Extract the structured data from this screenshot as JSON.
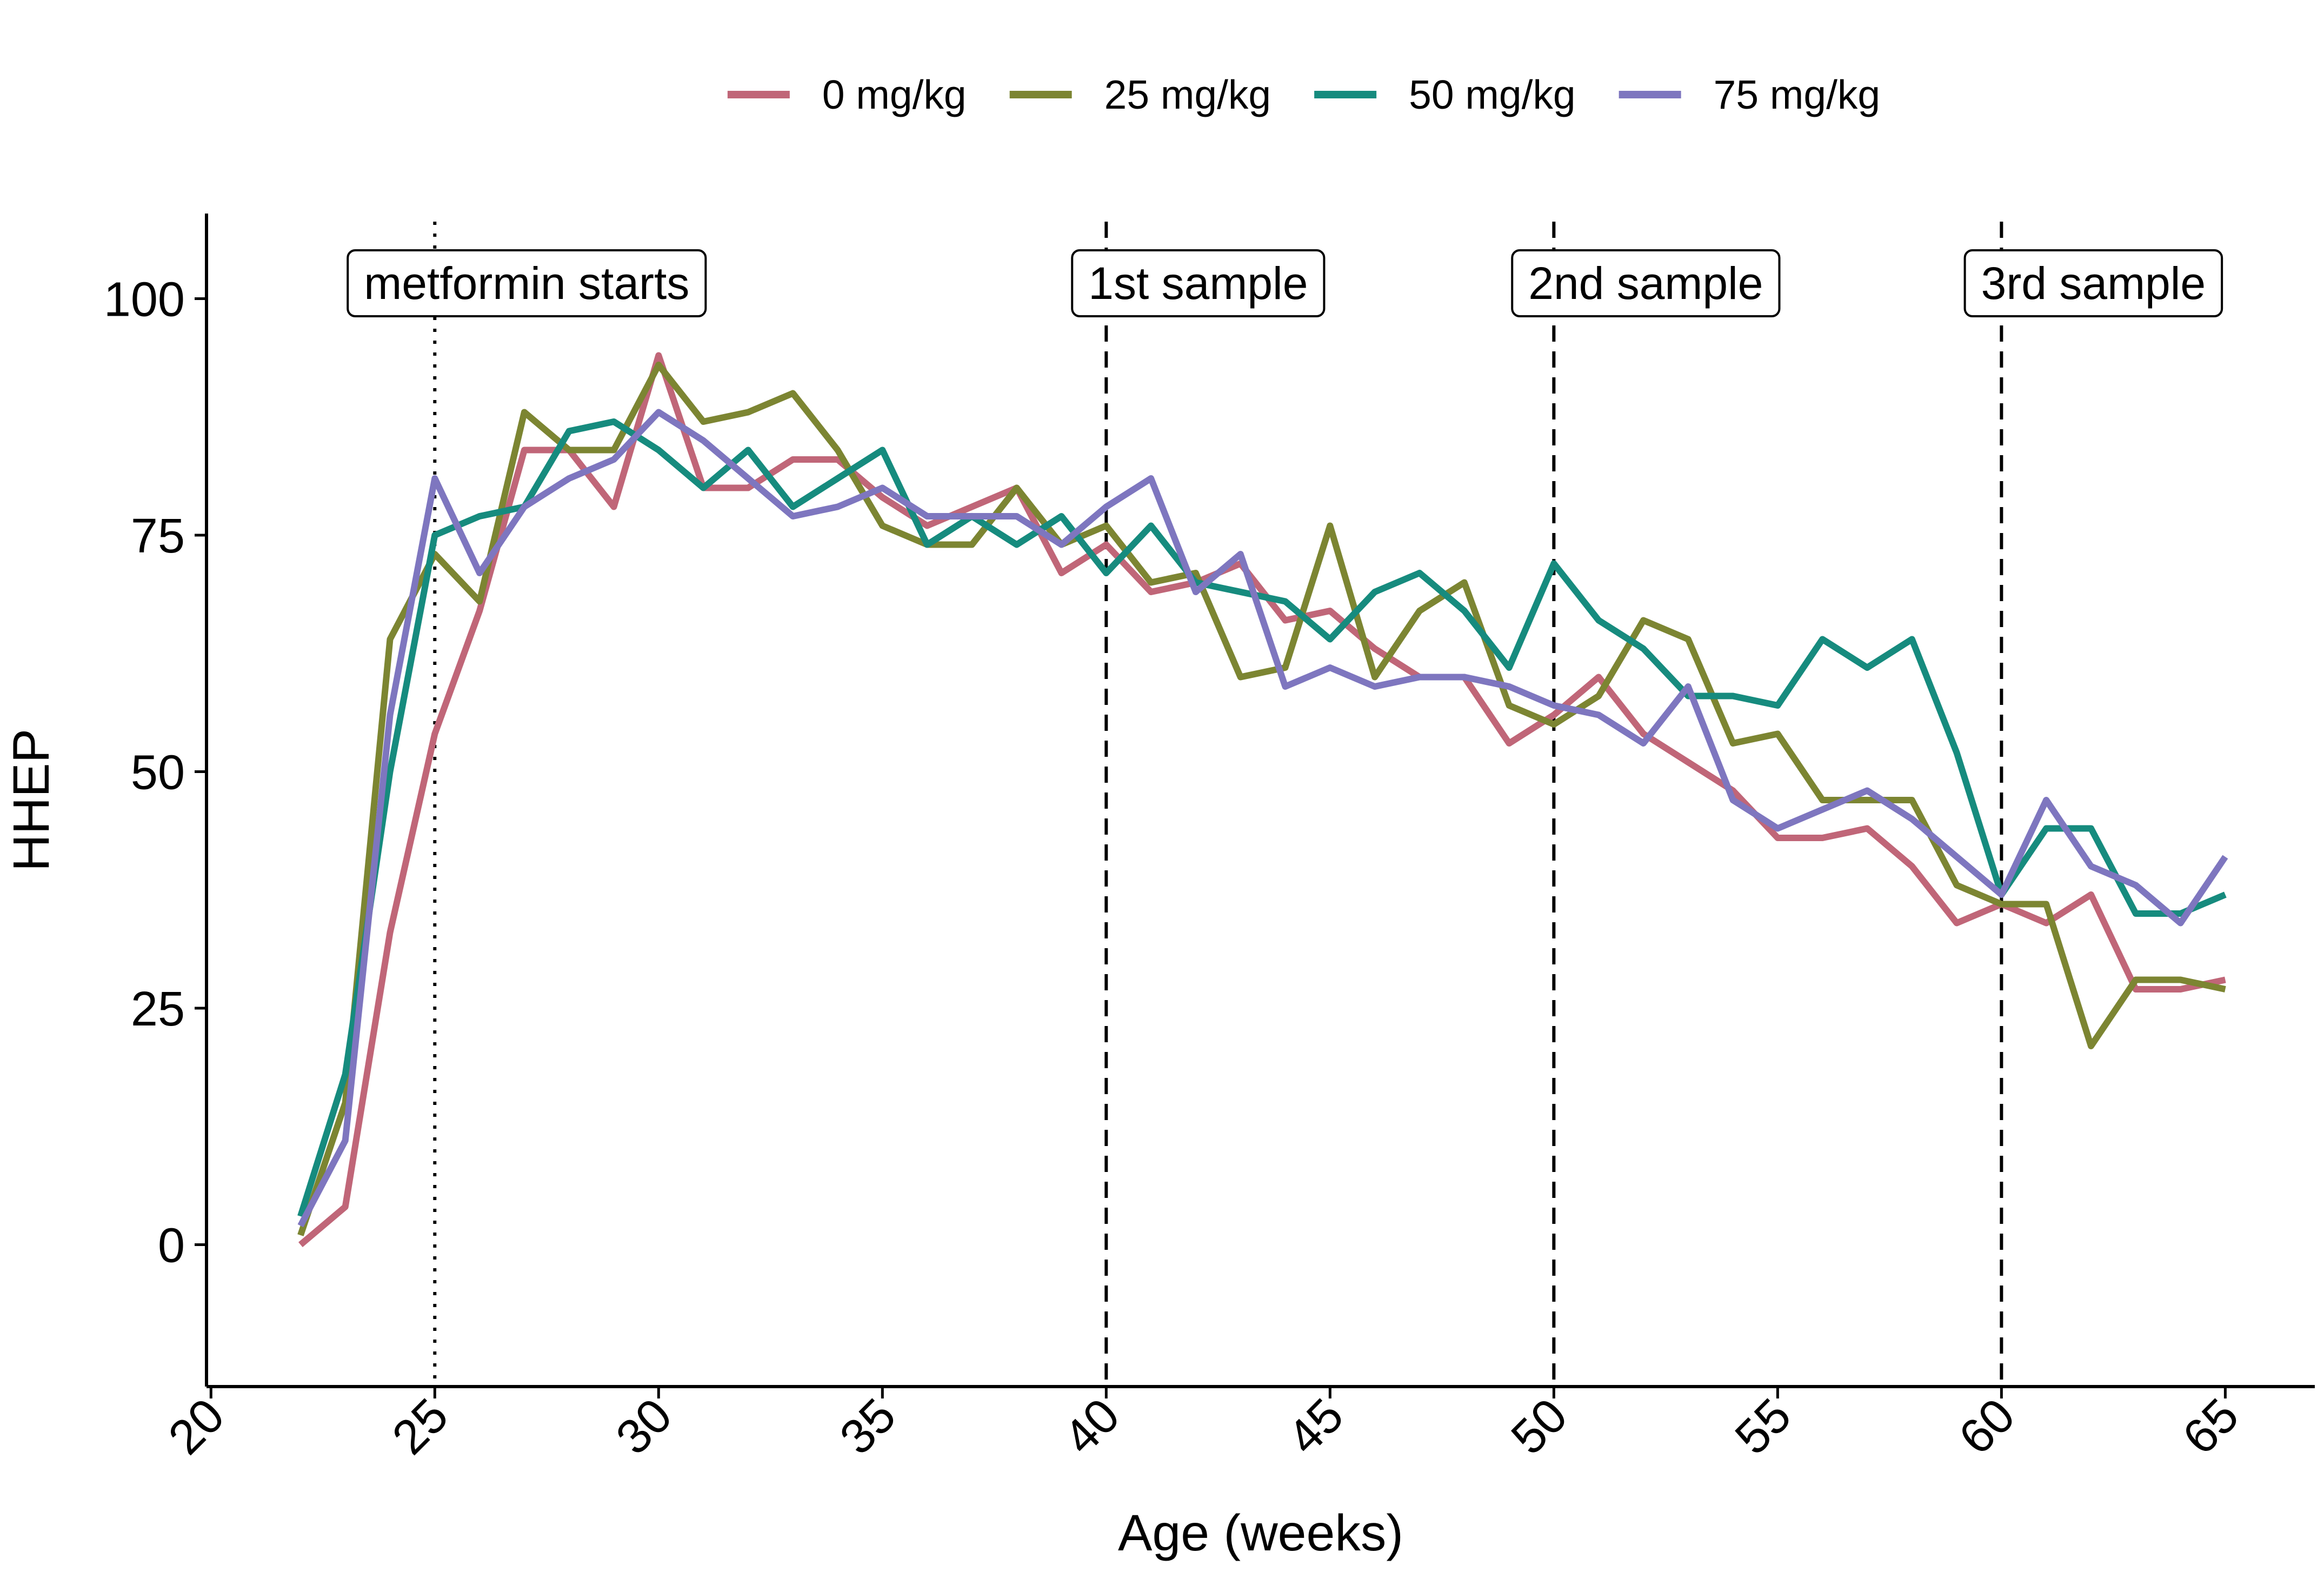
{
  "chart_data": {
    "type": "line",
    "title": "",
    "xlabel": "Age (weeks)",
    "ylabel": "HHEP",
    "xlim": [
      19.9,
      67.0
    ],
    "ylim": [
      -15,
      109
    ],
    "x_ticks": [
      20,
      25,
      30,
      35,
      40,
      45,
      50,
      55,
      60,
      65
    ],
    "y_ticks": [
      0,
      25,
      50,
      75,
      100
    ],
    "grid": false,
    "legend_position": "top",
    "x": [
      22,
      23,
      24,
      25,
      26,
      27,
      28,
      29,
      30,
      31,
      32,
      33,
      34,
      35,
      36,
      37,
      38,
      39,
      40,
      41,
      42,
      43,
      44,
      45,
      46,
      47,
      48,
      49,
      50,
      51,
      52,
      53,
      54,
      55,
      56,
      57,
      58,
      59,
      60,
      61,
      62,
      63,
      64,
      65
    ],
    "series": [
      {
        "name": "0 mg/kg",
        "color": "#C06678",
        "values": [
          0,
          4,
          33,
          54,
          67,
          84,
          84,
          78,
          94,
          80,
          80,
          83,
          83,
          79,
          76,
          78,
          80,
          71,
          74,
          69,
          70,
          72,
          66,
          67,
          63,
          60,
          60,
          53,
          56,
          60,
          54,
          51,
          48,
          43,
          43,
          44,
          40,
          34,
          36,
          34,
          37,
          27,
          27,
          28
        ]
      },
      {
        "name": "25 mg/kg",
        "color": "#7C8532",
        "values": [
          1,
          15,
          64,
          73,
          68,
          88,
          84,
          84,
          93,
          87,
          88,
          90,
          84,
          76,
          74,
          74,
          80,
          74,
          76,
          70,
          71,
          60,
          61,
          76,
          60,
          67,
          70,
          57,
          55,
          58,
          66,
          64,
          53,
          54,
          47,
          47,
          47,
          38,
          36,
          36,
          21,
          28,
          28,
          27
        ]
      },
      {
        "name": "50 mg/kg",
        "color": "#168B7E",
        "values": [
          3,
          18,
          50,
          75,
          77,
          78,
          86,
          87,
          84,
          80,
          84,
          78,
          81,
          84,
          74,
          77,
          74,
          77,
          71,
          76,
          70,
          69,
          68,
          64,
          69,
          71,
          67,
          61,
          72,
          66,
          63,
          58,
          58,
          57,
          64,
          61,
          64,
          52,
          37,
          44,
          44,
          35,
          35,
          37
        ]
      },
      {
        "name": "75 mg/kg",
        "color": "#7E76BF",
        "values": [
          2,
          11,
          56,
          81,
          71,
          78,
          81,
          83,
          88,
          85,
          81,
          77,
          78,
          80,
          77,
          77,
          77,
          74,
          78,
          81,
          69,
          73,
          59,
          61,
          59,
          60,
          60,
          59,
          57,
          56,
          53,
          59,
          47,
          44,
          46,
          48,
          45,
          41,
          37,
          47,
          40,
          38,
          34,
          41
        ]
      }
    ],
    "annotations": [
      {
        "x": 25,
        "label": "metformin starts",
        "style": "dotted"
      },
      {
        "x": 40,
        "label": "1st sample",
        "style": "dashed"
      },
      {
        "x": 50,
        "label": "2nd sample",
        "style": "dashed"
      },
      {
        "x": 60,
        "label": "3rd sample",
        "style": "dashed"
      }
    ]
  }
}
